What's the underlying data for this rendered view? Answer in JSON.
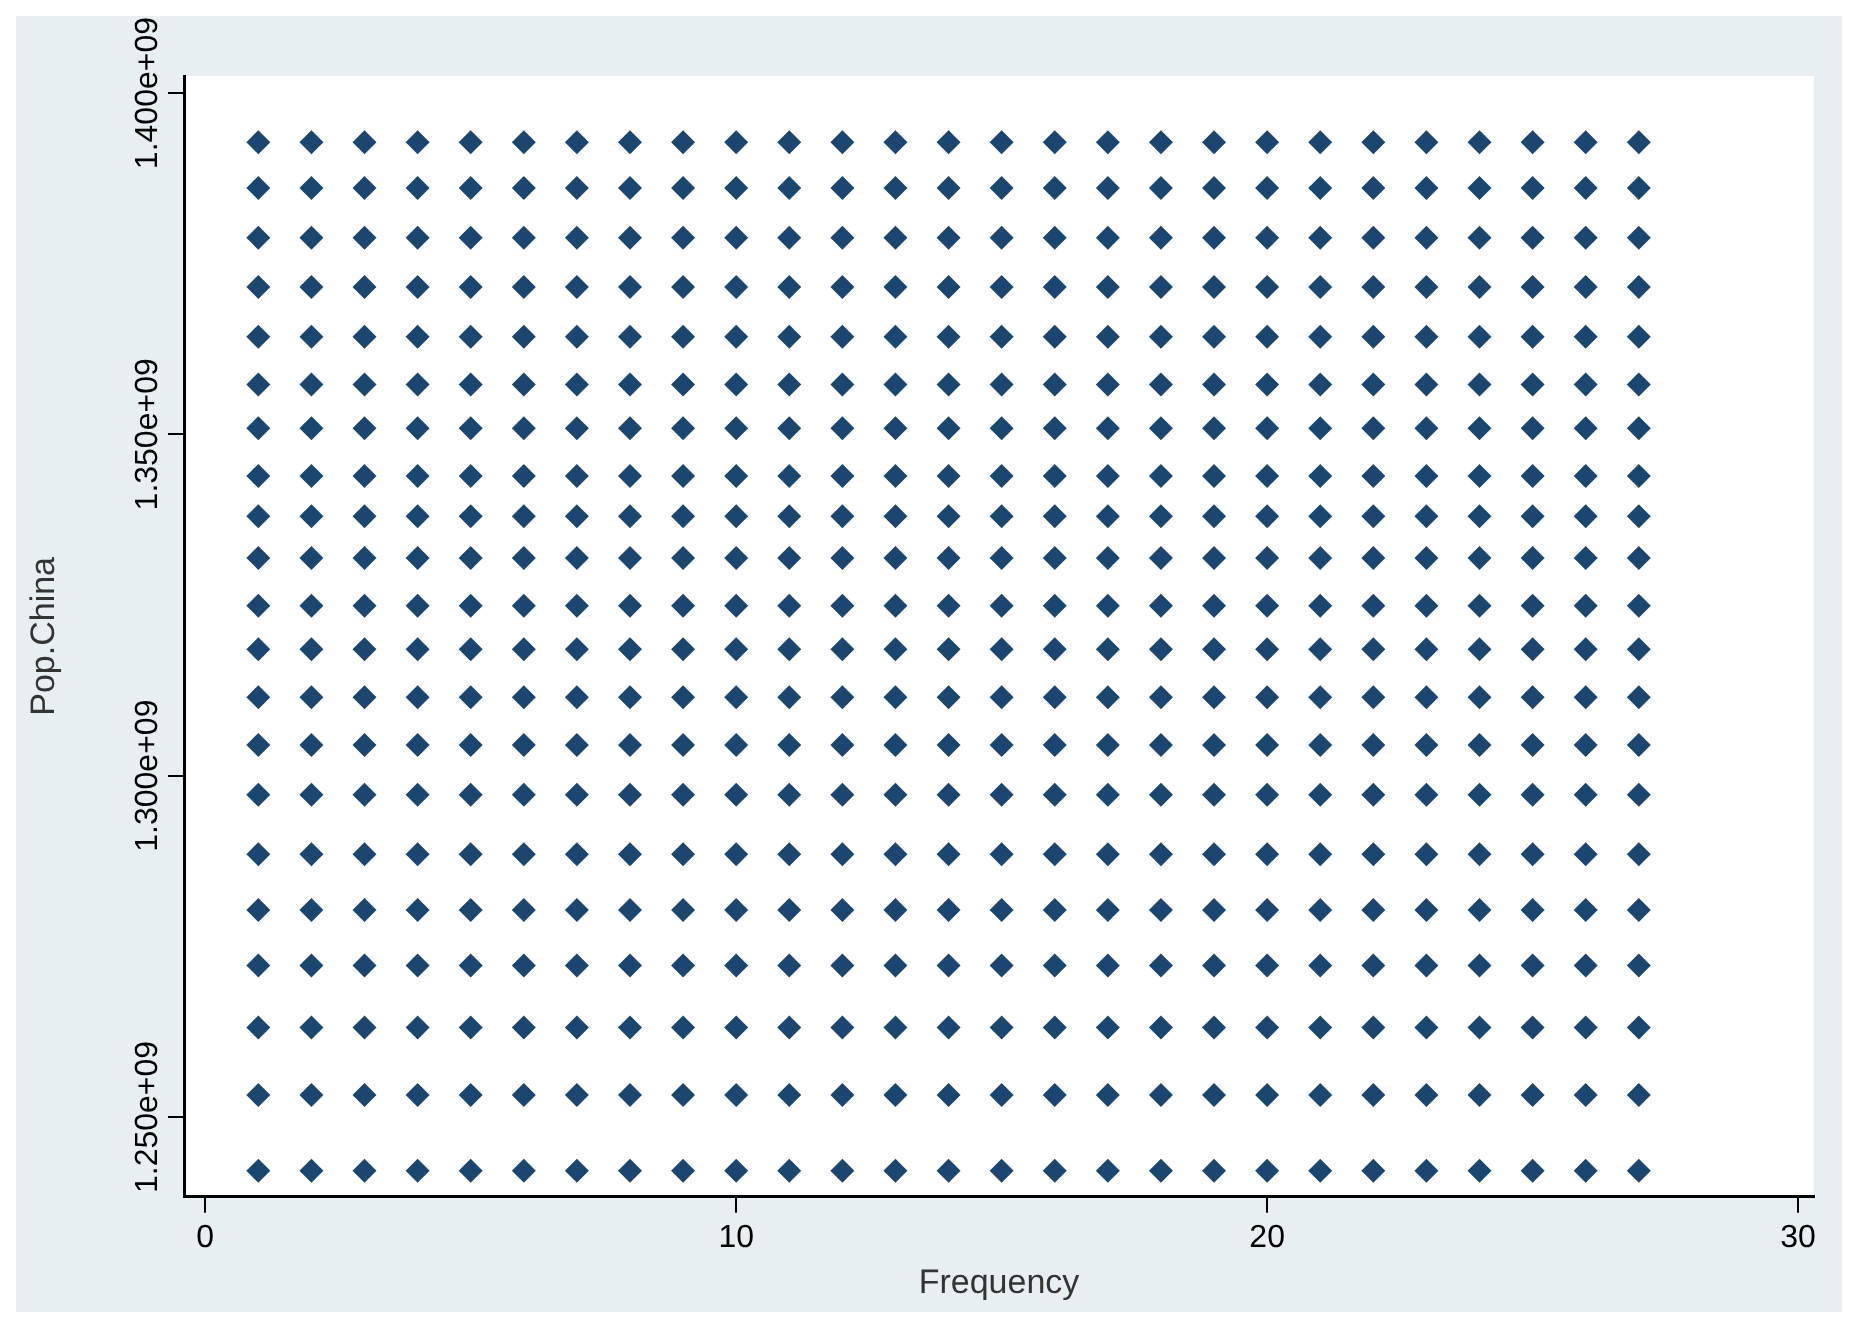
{
  "chart_data": {
    "type": "scatter",
    "xlabel": "Frequency",
    "ylabel": "Pop.China",
    "xlim": [
      -0.4,
      30.3
    ],
    "xticks": [
      0,
      10,
      20,
      30
    ],
    "ylim": [
      1238300000,
      1402500000
    ],
    "yticks": [
      {
        "value": 1250000000,
        "label": "1.250e+09"
      },
      {
        "value": 1300000000,
        "label": "1.300e+09"
      },
      {
        "value": 1350000000,
        "label": "1.350e+09"
      },
      {
        "value": 1400000000,
        "label": "1.400e+09"
      }
    ],
    "grid": false,
    "legend": false,
    "marker": "diamond",
    "series": [
      {
        "color": "#1a4670",
        "x": [
          1,
          2,
          3,
          4,
          5,
          6,
          7,
          8,
          9,
          10,
          11,
          12,
          13,
          14,
          15,
          16,
          17,
          18,
          19,
          20,
          21,
          22,
          23,
          24,
          25,
          26,
          27,
          1,
          2,
          3,
          4,
          5,
          6,
          7,
          8,
          9,
          10,
          11,
          12,
          13,
          14,
          15,
          16,
          17,
          18,
          19,
          20,
          21,
          22,
          23,
          24,
          25,
          26,
          27,
          1,
          2,
          3,
          4,
          5,
          6,
          7,
          8,
          9,
          10,
          11,
          12,
          13,
          14,
          15,
          16,
          17,
          18,
          19,
          20,
          21,
          22,
          23,
          24,
          25,
          26,
          27,
          1,
          2,
          3,
          4,
          5,
          6,
          7,
          8,
          9,
          10,
          11,
          12,
          13,
          14,
          15,
          16,
          17,
          18,
          19,
          20,
          21,
          22,
          23,
          24,
          25,
          26,
          27,
          1,
          2,
          3,
          4,
          5,
          6,
          7,
          8,
          9,
          10,
          11,
          12,
          13,
          14,
          15,
          16,
          17,
          18,
          19,
          20,
          21,
          22,
          23,
          24,
          25,
          26,
          27,
          1,
          2,
          3,
          4,
          5,
          6,
          7,
          8,
          9,
          10,
          11,
          12,
          13,
          14,
          15,
          16,
          17,
          18,
          19,
          20,
          21,
          22,
          23,
          24,
          25,
          26,
          27,
          1,
          2,
          3,
          4,
          5,
          6,
          7,
          8,
          9,
          10,
          11,
          12,
          13,
          14,
          15,
          16,
          17,
          18,
          19,
          20,
          21,
          22,
          23,
          24,
          25,
          26,
          27,
          1,
          2,
          3,
          4,
          5,
          6,
          7,
          8,
          9,
          10,
          11,
          12,
          13,
          14,
          15,
          16,
          17,
          18,
          19,
          20,
          21,
          22,
          23,
          24,
          25,
          26,
          27,
          1,
          2,
          3,
          4,
          5,
          6,
          7,
          8,
          9,
          10,
          11,
          12,
          13,
          14,
          15,
          16,
          17,
          18,
          19,
          20,
          21,
          22,
          23,
          24,
          25,
          26,
          27,
          1,
          2,
          3,
          4,
          5,
          6,
          7,
          8,
          9,
          10,
          11,
          12,
          13,
          14,
          15,
          16,
          17,
          18,
          19,
          20,
          21,
          22,
          23,
          24,
          25,
          26,
          27,
          1,
          2,
          3,
          4,
          5,
          6,
          7,
          8,
          9,
          10,
          11,
          12,
          13,
          14,
          15,
          16,
          17,
          18,
          19,
          20,
          21,
          22,
          23,
          24,
          25,
          26,
          27,
          1,
          2,
          3,
          4,
          5,
          6,
          7,
          8,
          9,
          10,
          11,
          12,
          13,
          14,
          15,
          16,
          17,
          18,
          19,
          20,
          21,
          22,
          23,
          24,
          25,
          26,
          27,
          1,
          2,
          3,
          4,
          5,
          6,
          7,
          8,
          9,
          10,
          11,
          12,
          13,
          14,
          15,
          16,
          17,
          18,
          19,
          20,
          21,
          22,
          23,
          24,
          25,
          26,
          27,
          1,
          2,
          3,
          4,
          5,
          6,
          7,
          8,
          9,
          10,
          11,
          12,
          13,
          14,
          15,
          16,
          17,
          18,
          19,
          20,
          21,
          22,
          23,
          24,
          25,
          26,
          27,
          1,
          2,
          3,
          4,
          5,
          6,
          7,
          8,
          9,
          10,
          11,
          12,
          13,
          14,
          15,
          16,
          17,
          18,
          19,
          20,
          21,
          22,
          23,
          24,
          25,
          26,
          27,
          1,
          2,
          3,
          4,
          5,
          6,
          7,
          8,
          9,
          10,
          11,
          12,
          13,
          14,
          15,
          16,
          17,
          18,
          19,
          20,
          21,
          22,
          23,
          24,
          25,
          26,
          27,
          1,
          2,
          3,
          4,
          5,
          6,
          7,
          8,
          9,
          10,
          11,
          12,
          13,
          14,
          15,
          16,
          17,
          18,
          19,
          20,
          21,
          22,
          23,
          24,
          25,
          26,
          27,
          1,
          2,
          3,
          4,
          5,
          6,
          7,
          8,
          9,
          10,
          11,
          12,
          13,
          14,
          15,
          16,
          17,
          18,
          19,
          20,
          21,
          22,
          23,
          24,
          25,
          26,
          27,
          1,
          2,
          3,
          4,
          5,
          6,
          7,
          8,
          9,
          10,
          11,
          12,
          13,
          14,
          15,
          16,
          17,
          18,
          19,
          20,
          21,
          22,
          23,
          24,
          25,
          26,
          27,
          1,
          2,
          3,
          4,
          5,
          6,
          7,
          8,
          9,
          10,
          11,
          12,
          13,
          14,
          15,
          16,
          17,
          18,
          19,
          20,
          21,
          22,
          23,
          24,
          25,
          26,
          27,
          1,
          2,
          3,
          4,
          5,
          6,
          7,
          8,
          9,
          10,
          11,
          12,
          13,
          14,
          15,
          16,
          17,
          18,
          19,
          20,
          21,
          22,
          23,
          24,
          25,
          26,
          27
        ],
        "values": [
          1392800000,
          1392800000,
          1392800000,
          1392800000,
          1392800000,
          1392800000,
          1392800000,
          1392800000,
          1392800000,
          1392800000,
          1392800000,
          1392800000,
          1392800000,
          1392800000,
          1392800000,
          1392800000,
          1392800000,
          1392800000,
          1392800000,
          1392800000,
          1392800000,
          1392800000,
          1392800000,
          1392800000,
          1392800000,
          1392800000,
          1392800000,
          1386100000,
          1386100000,
          1386100000,
          1386100000,
          1386100000,
          1386100000,
          1386100000,
          1386100000,
          1386100000,
          1386100000,
          1386100000,
          1386100000,
          1386100000,
          1386100000,
          1386100000,
          1386100000,
          1386100000,
          1386100000,
          1386100000,
          1386100000,
          1386100000,
          1386100000,
          1386100000,
          1386100000,
          1386100000,
          1386100000,
          1386100000,
          1378800000,
          1378800000,
          1378800000,
          1378800000,
          1378800000,
          1378800000,
          1378800000,
          1378800000,
          1378800000,
          1378800000,
          1378800000,
          1378800000,
          1378800000,
          1378800000,
          1378800000,
          1378800000,
          1378800000,
          1378800000,
          1378800000,
          1378800000,
          1378800000,
          1378800000,
          1378800000,
          1378800000,
          1378800000,
          1378800000,
          1378800000,
          1371600000,
          1371600000,
          1371600000,
          1371600000,
          1371600000,
          1371600000,
          1371600000,
          1371600000,
          1371600000,
          1371600000,
          1371600000,
          1371600000,
          1371600000,
          1371600000,
          1371600000,
          1371600000,
          1371600000,
          1371600000,
          1371600000,
          1371600000,
          1371600000,
          1371600000,
          1371600000,
          1371600000,
          1371600000,
          1371600000,
          1371600000,
          1364300000,
          1364300000,
          1364300000,
          1364300000,
          1364300000,
          1364300000,
          1364300000,
          1364300000,
          1364300000,
          1364300000,
          1364300000,
          1364300000,
          1364300000,
          1364300000,
          1364300000,
          1364300000,
          1364300000,
          1364300000,
          1364300000,
          1364300000,
          1364300000,
          1364300000,
          1364300000,
          1364300000,
          1364300000,
          1364300000,
          1364300000,
          1357300000,
          1357300000,
          1357300000,
          1357300000,
          1357300000,
          1357300000,
          1357300000,
          1357300000,
          1357300000,
          1357300000,
          1357300000,
          1357300000,
          1357300000,
          1357300000,
          1357300000,
          1357300000,
          1357300000,
          1357300000,
          1357300000,
          1357300000,
          1357300000,
          1357300000,
          1357300000,
          1357300000,
          1357300000,
          1357300000,
          1357300000,
          1350900000,
          1350900000,
          1350900000,
          1350900000,
          1350900000,
          1350900000,
          1350900000,
          1350900000,
          1350900000,
          1350900000,
          1350900000,
          1350900000,
          1350900000,
          1350900000,
          1350900000,
          1350900000,
          1350900000,
          1350900000,
          1350900000,
          1350900000,
          1350900000,
          1350900000,
          1350900000,
          1350900000,
          1350900000,
          1350900000,
          1350900000,
          1343900000,
          1343900000,
          1343900000,
          1343900000,
          1343900000,
          1343900000,
          1343900000,
          1343900000,
          1343900000,
          1343900000,
          1343900000,
          1343900000,
          1343900000,
          1343900000,
          1343900000,
          1343900000,
          1343900000,
          1343900000,
          1343900000,
          1343900000,
          1343900000,
          1343900000,
          1343900000,
          1343900000,
          1343900000,
          1343900000,
          1343900000,
          1338000000,
          1338000000,
          1338000000,
          1338000000,
          1338000000,
          1338000000,
          1338000000,
          1338000000,
          1338000000,
          1338000000,
          1338000000,
          1338000000,
          1338000000,
          1338000000,
          1338000000,
          1338000000,
          1338000000,
          1338000000,
          1338000000,
          1338000000,
          1338000000,
          1338000000,
          1338000000,
          1338000000,
          1338000000,
          1338000000,
          1338000000,
          1331900000,
          1331900000,
          1331900000,
          1331900000,
          1331900000,
          1331900000,
          1331900000,
          1331900000,
          1331900000,
          1331900000,
          1331900000,
          1331900000,
          1331900000,
          1331900000,
          1331900000,
          1331900000,
          1331900000,
          1331900000,
          1331900000,
          1331900000,
          1331900000,
          1331900000,
          1331900000,
          1331900000,
          1331900000,
          1331900000,
          1331900000,
          1324900000,
          1324900000,
          1324900000,
          1324900000,
          1324900000,
          1324900000,
          1324900000,
          1324900000,
          1324900000,
          1324900000,
          1324900000,
          1324900000,
          1324900000,
          1324900000,
          1324900000,
          1324900000,
          1324900000,
          1324900000,
          1324900000,
          1324900000,
          1324900000,
          1324900000,
          1324900000,
          1324900000,
          1324900000,
          1324900000,
          1324900000,
          1318500000,
          1318500000,
          1318500000,
          1318500000,
          1318500000,
          1318500000,
          1318500000,
          1318500000,
          1318500000,
          1318500000,
          1318500000,
          1318500000,
          1318500000,
          1318500000,
          1318500000,
          1318500000,
          1318500000,
          1318500000,
          1318500000,
          1318500000,
          1318500000,
          1318500000,
          1318500000,
          1318500000,
          1318500000,
          1318500000,
          1318500000,
          1311500000,
          1311500000,
          1311500000,
          1311500000,
          1311500000,
          1311500000,
          1311500000,
          1311500000,
          1311500000,
          1311500000,
          1311500000,
          1311500000,
          1311500000,
          1311500000,
          1311500000,
          1311500000,
          1311500000,
          1311500000,
          1311500000,
          1311500000,
          1311500000,
          1311500000,
          1311500000,
          1311500000,
          1311500000,
          1311500000,
          1311500000,
          1304500000,
          1304500000,
          1304500000,
          1304500000,
          1304500000,
          1304500000,
          1304500000,
          1304500000,
          1304500000,
          1304500000,
          1304500000,
          1304500000,
          1304500000,
          1304500000,
          1304500000,
          1304500000,
          1304500000,
          1304500000,
          1304500000,
          1304500000,
          1304500000,
          1304500000,
          1304500000,
          1304500000,
          1304500000,
          1304500000,
          1304500000,
          1297200000,
          1297200000,
          1297200000,
          1297200000,
          1297200000,
          1297200000,
          1297200000,
          1297200000,
          1297200000,
          1297200000,
          1297200000,
          1297200000,
          1297200000,
          1297200000,
          1297200000,
          1297200000,
          1297200000,
          1297200000,
          1297200000,
          1297200000,
          1297200000,
          1297200000,
          1297200000,
          1297200000,
          1297200000,
          1297200000,
          1297200000,
          1288500000,
          1288500000,
          1288500000,
          1288500000,
          1288500000,
          1288500000,
          1288500000,
          1288500000,
          1288500000,
          1288500000,
          1288500000,
          1288500000,
          1288500000,
          1288500000,
          1288500000,
          1288500000,
          1288500000,
          1288500000,
          1288500000,
          1288500000,
          1288500000,
          1288500000,
          1288500000,
          1288500000,
          1288500000,
          1288500000,
          1288500000,
          1280300000,
          1280300000,
          1280300000,
          1280300000,
          1280300000,
          1280300000,
          1280300000,
          1280300000,
          1280300000,
          1280300000,
          1280300000,
          1280300000,
          1280300000,
          1280300000,
          1280300000,
          1280300000,
          1280300000,
          1280300000,
          1280300000,
          1280300000,
          1280300000,
          1280300000,
          1280300000,
          1280300000,
          1280300000,
          1280300000,
          1280300000,
          1272200000,
          1272200000,
          1272200000,
          1272200000,
          1272200000,
          1272200000,
          1272200000,
          1272200000,
          1272200000,
          1272200000,
          1272200000,
          1272200000,
          1272200000,
          1272200000,
          1272200000,
          1272200000,
          1272200000,
          1272200000,
          1272200000,
          1272200000,
          1272200000,
          1272200000,
          1272200000,
          1272200000,
          1272200000,
          1272200000,
          1272200000,
          1263100000,
          1263100000,
          1263100000,
          1263100000,
          1263100000,
          1263100000,
          1263100000,
          1263100000,
          1263100000,
          1263100000,
          1263100000,
          1263100000,
          1263100000,
          1263100000,
          1263100000,
          1263100000,
          1263100000,
          1263100000,
          1263100000,
          1263100000,
          1263100000,
          1263100000,
          1263100000,
          1263100000,
          1263100000,
          1263100000,
          1263100000,
          1253200000,
          1253200000,
          1253200000,
          1253200000,
          1253200000,
          1253200000,
          1253200000,
          1253200000,
          1253200000,
          1253200000,
          1253200000,
          1253200000,
          1253200000,
          1253200000,
          1253200000,
          1253200000,
          1253200000,
          1253200000,
          1253200000,
          1253200000,
          1253200000,
          1253200000,
          1253200000,
          1253200000,
          1253200000,
          1253200000,
          1253200000,
          1242100000,
          1242100000,
          1242100000,
          1242100000,
          1242100000,
          1242100000,
          1242100000,
          1242100000,
          1242100000,
          1242100000,
          1242100000,
          1242100000,
          1242100000,
          1242100000,
          1242100000,
          1242100000,
          1242100000,
          1242100000,
          1242100000,
          1242100000,
          1242100000,
          1242100000,
          1242100000,
          1242100000,
          1242100000,
          1242100000,
          1242100000
        ]
      }
    ]
  }
}
